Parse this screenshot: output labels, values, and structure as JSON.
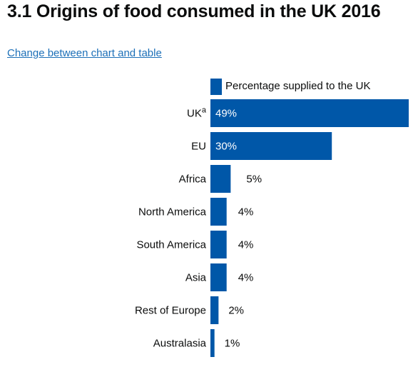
{
  "page": {
    "title": "3.1 Origins of food consumed in the UK 2016",
    "toggle_link": "Change between chart and table"
  },
  "colors": {
    "bar": "#0057a8",
    "text": "#0b0c0c",
    "link": "#1d70b8",
    "label_inside": "#ffffff"
  },
  "chart_data": {
    "type": "bar",
    "orientation": "horizontal",
    "series": [
      {
        "name": "Percentage supplied to the UK",
        "values": [
          49,
          30,
          5,
          4,
          4,
          4,
          2,
          1
        ]
      }
    ],
    "categories": [
      "UK",
      "EU",
      "Africa",
      "North America",
      "South America",
      "Asia",
      "Rest of Europe",
      "Australasia"
    ],
    "category_superscripts": [
      "a",
      "",
      "",
      "",
      "",
      "",
      "",
      ""
    ],
    "data_labels": [
      "49%",
      "30%",
      "5%",
      "4%",
      "4%",
      "4%",
      "2%",
      "1%"
    ],
    "legend_position": "top",
    "grid": false
  }
}
